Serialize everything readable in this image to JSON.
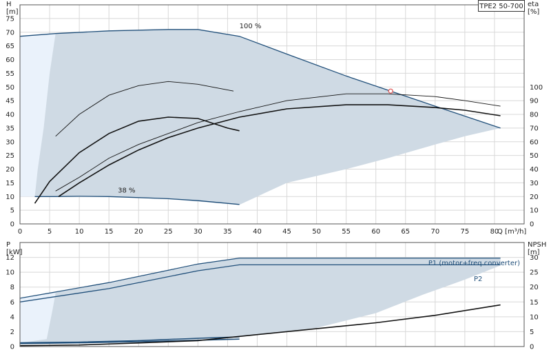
{
  "model_label": "TPE2 50-700",
  "colors": {
    "envelope_fill": "#cfdae4",
    "low_speed_fill": "#eaf2fb",
    "head_curve": "#1f4e79",
    "efficiency_curve": "#111111",
    "grid": "#d8d8d8",
    "duty_point": "#e05a5a"
  },
  "chart_data": [
    {
      "type": "line",
      "name": "head-and-efficiency",
      "x_axis": {
        "label": "Q [m³/h]",
        "min": 0,
        "max": 85,
        "ticks": [
          0,
          5,
          10,
          15,
          20,
          25,
          30,
          35,
          40,
          45,
          50,
          55,
          60,
          65,
          70,
          75,
          80
        ]
      },
      "y_axis": {
        "label": "H",
        "unit": "[m]",
        "min": 0,
        "max": 80,
        "ticks": [
          0,
          5,
          10,
          15,
          20,
          25,
          30,
          35,
          40,
          45,
          50,
          55,
          60,
          65,
          70,
          75
        ]
      },
      "y2_axis": {
        "label": "eta",
        "unit": "[%]",
        "min": 0,
        "max": 100,
        "ticks": [
          0,
          10,
          20,
          30,
          40,
          50,
          60,
          70,
          80,
          90,
          100
        ]
      },
      "grid": true,
      "annotations": [
        {
          "text": "100 %",
          "x": 37,
          "y": 71.5
        },
        {
          "text": "38 %",
          "x": 16.5,
          "y": 11.5
        }
      ],
      "envelope": [
        [
          0,
          68.5
        ],
        [
          6,
          69.5
        ],
        [
          15,
          70.5
        ],
        [
          25,
          71
        ],
        [
          30,
          71
        ],
        [
          37,
          68.5
        ],
        [
          45,
          62
        ],
        [
          55,
          54
        ],
        [
          62.5,
          48.5
        ],
        [
          70,
          43
        ],
        [
          81,
          35
        ],
        [
          75,
          32
        ],
        [
          70,
          29
        ],
        [
          62,
          24
        ],
        [
          55,
          20
        ],
        [
          45,
          15
        ],
        [
          37,
          7
        ],
        [
          25,
          9
        ],
        [
          15,
          10
        ],
        [
          6,
          10
        ],
        [
          2.5,
          10
        ],
        [
          0,
          10
        ]
      ],
      "low_speed_region": [
        [
          0,
          68.5
        ],
        [
          6,
          69.5
        ],
        [
          5,
          55
        ],
        [
          4,
          35
        ],
        [
          3,
          20
        ],
        [
          2.5,
          10
        ],
        [
          0,
          10
        ]
      ],
      "series": [
        {
          "name": "100 %",
          "role": "head",
          "x": [
            0,
            6,
            15,
            25,
            30,
            37,
            45,
            55,
            62.5,
            70,
            81
          ],
          "y": [
            68.5,
            69.5,
            70.5,
            71,
            71,
            68.5,
            62,
            54,
            48.5,
            43,
            35
          ]
        },
        {
          "name": "38 %",
          "role": "head",
          "x": [
            2.5,
            6,
            10,
            15,
            20,
            25,
            30,
            37
          ],
          "y": [
            10,
            10,
            10.1,
            10,
            9.6,
            9.2,
            8.5,
            7.1
          ]
        },
        {
          "role": "eta",
          "x": [
            6,
            10,
            15,
            20,
            25,
            30,
            36
          ],
          "y": [
            32,
            40,
            47,
            50.5,
            52,
            51,
            48.5
          ]
        },
        {
          "role": "eta",
          "x": [
            2.5,
            5,
            10,
            15,
            20,
            25,
            30,
            35,
            37
          ],
          "y": [
            7.5,
            15.5,
            26,
            33,
            37.5,
            39,
            38.5,
            35,
            34
          ]
        },
        {
          "role": "eta",
          "x": [
            6,
            10,
            15,
            20,
            25,
            30,
            37,
            45,
            55,
            62,
            70,
            75,
            81
          ],
          "y": [
            12,
            17,
            24,
            29,
            33,
            37,
            41,
            45,
            47.5,
            47.5,
            46.5,
            45,
            43
          ]
        },
        {
          "role": "eta",
          "x": [
            6.5,
            10,
            15,
            20,
            25,
            30,
            37,
            45,
            55,
            62,
            70,
            75,
            81
          ],
          "y": [
            10,
            15,
            21.5,
            27,
            31.5,
            35,
            39,
            42,
            43.5,
            43.5,
            42.5,
            41.5,
            39.5
          ]
        }
      ],
      "duty_point": {
        "x": 62.5,
        "y": 48.5
      }
    },
    {
      "type": "line",
      "name": "power-and-npsh",
      "x_axis": {
        "min": 0,
        "max": 85
      },
      "y_axis": {
        "label": "P",
        "unit": "[kW]",
        "min": 0,
        "max": 14,
        "ticks": [
          0,
          2,
          4,
          6,
          8,
          10,
          12
        ]
      },
      "y2_axis": {
        "label": "NPSH",
        "unit": "[m]",
        "min": 0,
        "max": 35,
        "ticks": [
          0,
          5,
          10,
          15,
          20,
          25,
          30
        ]
      },
      "grid": true,
      "envelope": [
        [
          0,
          6.5
        ],
        [
          15,
          8.5
        ],
        [
          30,
          11
        ],
        [
          37,
          11.9
        ],
        [
          81,
          11.9
        ],
        [
          81,
          10.9
        ],
        [
          75,
          9
        ],
        [
          68,
          7
        ],
        [
          60,
          4.5
        ],
        [
          50,
          2.5
        ],
        [
          37,
          1.3
        ],
        [
          25,
          1
        ],
        [
          10,
          0.7
        ],
        [
          0,
          0.5
        ]
      ],
      "low_speed_region": [
        [
          0,
          6.5
        ],
        [
          6,
          7.2
        ],
        [
          5.5,
          5
        ],
        [
          5,
          3
        ],
        [
          4.5,
          1
        ],
        [
          0,
          0.5
        ]
      ],
      "series": [
        {
          "name": "P1 (motor+freq.converter)",
          "role": "power",
          "x": [
            0,
            15,
            30,
            37,
            81
          ],
          "y": [
            6.5,
            8.6,
            11.1,
            11.9,
            11.9
          ]
        },
        {
          "name": "P2",
          "role": "power",
          "x": [
            0,
            15,
            30,
            37,
            81
          ],
          "y": [
            6,
            7.8,
            10.2,
            11,
            11
          ]
        },
        {
          "role": "power-low",
          "x": [
            0,
            10,
            20,
            30,
            37
          ],
          "y": [
            0.5,
            0.6,
            0.8,
            1.1,
            1.3
          ]
        },
        {
          "role": "power-low",
          "x": [
            0,
            10,
            20,
            30,
            37
          ],
          "y": [
            0.4,
            0.5,
            0.65,
            0.85,
            1.0
          ]
        },
        {
          "role": "npsh",
          "x": [
            0,
            10,
            20,
            30,
            40,
            50,
            60,
            70,
            81
          ],
          "y": [
            0.3,
            0.5,
            1.2,
            2.0,
            4.0,
            6.0,
            8.0,
            10.5,
            14
          ]
        }
      ]
    }
  ]
}
